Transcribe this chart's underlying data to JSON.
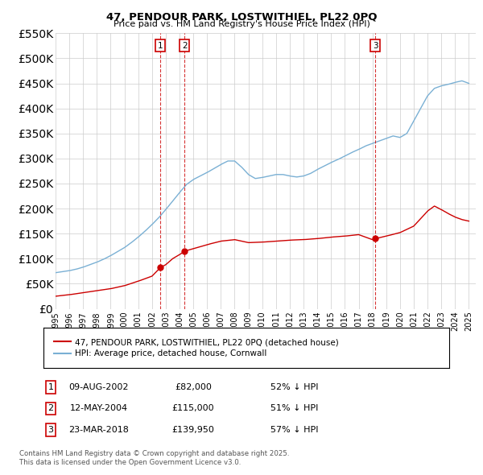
{
  "title": "47, PENDOUR PARK, LOSTWITHIEL, PL22 0PQ",
  "subtitle": "Price paid vs. HM Land Registry's House Price Index (HPI)",
  "legend_entry1": "47, PENDOUR PARK, LOSTWITHIEL, PL22 0PQ (detached house)",
  "legend_entry2": "HPI: Average price, detached house, Cornwall",
  "transactions": [
    {
      "num": 1,
      "date": "09-AUG-2002",
      "price": 82000,
      "year": 2002.6,
      "hpi_pct": "52% ↓ HPI"
    },
    {
      "num": 2,
      "date": "12-MAY-2004",
      "price": 115000,
      "year": 2004.37,
      "hpi_pct": "51% ↓ HPI"
    },
    {
      "num": 3,
      "date": "23-MAR-2018",
      "price": 139950,
      "year": 2018.22,
      "hpi_pct": "57% ↓ HPI"
    }
  ],
  "footnote1": "Contains HM Land Registry data © Crown copyright and database right 2025.",
  "footnote2": "This data is licensed under the Open Government Licence v3.0.",
  "red_color": "#cc0000",
  "blue_color": "#7ab0d4",
  "bg_color": "#ffffff",
  "grid_color": "#cccccc",
  "hpi_years": [
    1995.0,
    1995.5,
    1996.0,
    1996.5,
    1997.0,
    1997.5,
    1998.0,
    1998.5,
    1999.0,
    1999.5,
    2000.0,
    2000.5,
    2001.0,
    2001.5,
    2002.0,
    2002.5,
    2003.0,
    2003.5,
    2004.0,
    2004.5,
    2005.0,
    2005.5,
    2006.0,
    2006.5,
    2007.0,
    2007.5,
    2008.0,
    2008.5,
    2009.0,
    2009.5,
    2010.0,
    2010.5,
    2011.0,
    2011.5,
    2012.0,
    2012.5,
    2013.0,
    2013.5,
    2014.0,
    2014.5,
    2015.0,
    2015.5,
    2016.0,
    2016.5,
    2017.0,
    2017.5,
    2018.0,
    2018.5,
    2019.0,
    2019.5,
    2020.0,
    2020.5,
    2021.0,
    2021.5,
    2022.0,
    2022.5,
    2023.0,
    2023.5,
    2024.0,
    2024.5,
    2025.0
  ],
  "hpi_values": [
    72000,
    74000,
    76000,
    79000,
    83000,
    88000,
    93000,
    99000,
    106000,
    114000,
    122000,
    132000,
    143000,
    155000,
    168000,
    182000,
    198000,
    215000,
    232000,
    248000,
    258000,
    265000,
    272000,
    280000,
    288000,
    295000,
    295000,
    283000,
    268000,
    260000,
    262000,
    265000,
    268000,
    268000,
    265000,
    263000,
    265000,
    270000,
    278000,
    285000,
    292000,
    298000,
    305000,
    312000,
    318000,
    325000,
    330000,
    335000,
    340000,
    345000,
    342000,
    350000,
    375000,
    400000,
    425000,
    440000,
    445000,
    448000,
    452000,
    455000,
    450000
  ],
  "red_years": [
    1995.0,
    1996.0,
    1997.0,
    1998.0,
    1999.0,
    2000.0,
    2001.0,
    2002.0,
    2002.6,
    2003.0,
    2003.5,
    2004.0,
    2004.37,
    2005.0,
    2006.0,
    2007.0,
    2008.0,
    2009.0,
    2010.0,
    2011.0,
    2012.0,
    2013.0,
    2014.0,
    2015.0,
    2016.0,
    2017.0,
    2018.0,
    2018.22,
    2019.0,
    2020.0,
    2021.0,
    2022.0,
    2022.5,
    2023.0,
    2023.5,
    2024.0,
    2024.5,
    2025.0
  ],
  "red_values": [
    25000,
    28000,
    32000,
    36000,
    40000,
    46000,
    55000,
    65000,
    82000,
    88000,
    100000,
    108000,
    115000,
    120000,
    128000,
    135000,
    138000,
    132000,
    133000,
    135000,
    137000,
    138000,
    140000,
    143000,
    145000,
    148000,
    138000,
    139950,
    145000,
    152000,
    165000,
    195000,
    205000,
    198000,
    190000,
    183000,
    178000,
    175000
  ],
  "ylim_max": 550000,
  "xlim_start": 1995.0,
  "xlim_end": 2025.5
}
